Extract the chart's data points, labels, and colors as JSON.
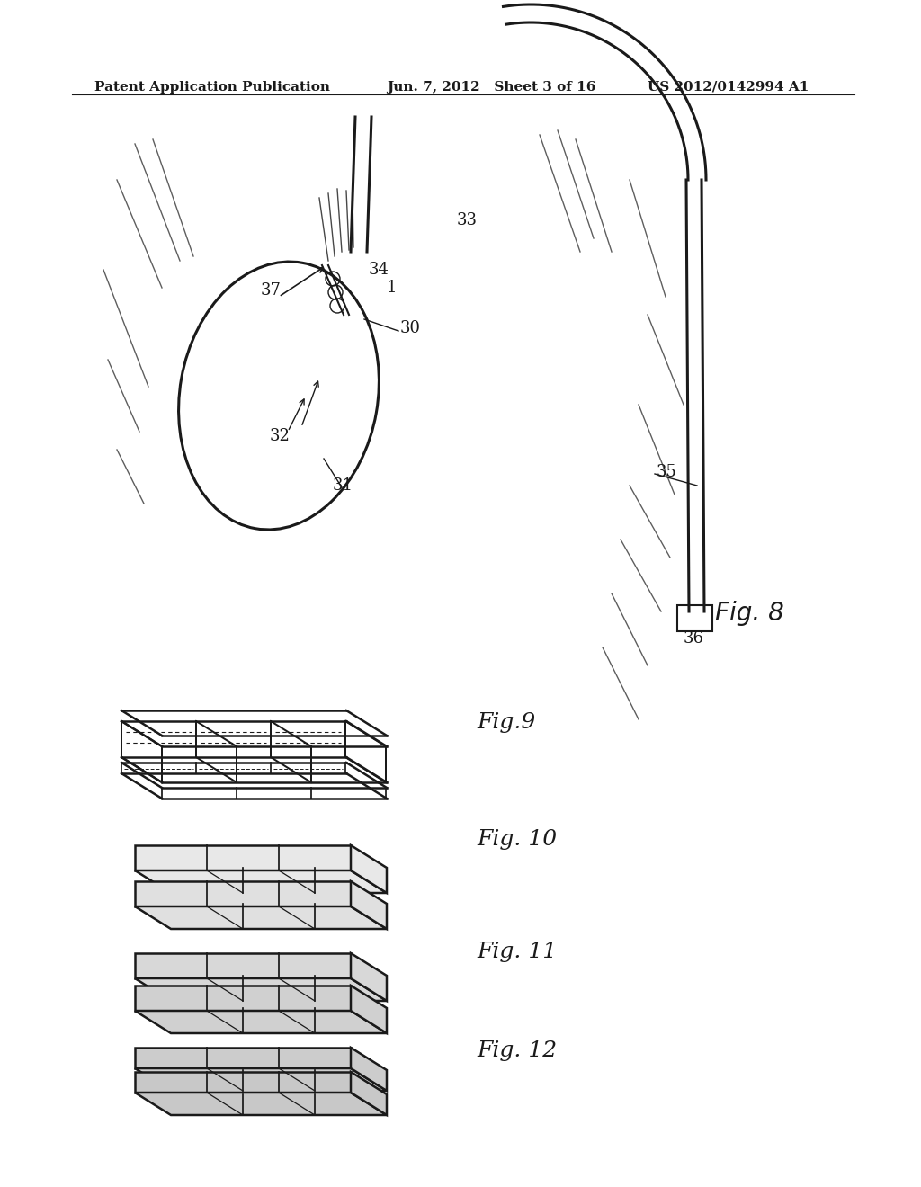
{
  "bg_color": "#ffffff",
  "header_left": "Patent Application Publication",
  "header_center": "Jun. 7, 2012   Sheet 3 of 16",
  "header_right": "US 2012/0142994 A1",
  "fig8_label": "Fig. 8",
  "fig9_label": "Fig.9",
  "fig10_label": "Fig. 10",
  "fig11_label": "Fig. 11",
  "fig12_label": "Fig. 12",
  "labels": [
    "37",
    "34",
    "1",
    "30",
    "32",
    "31",
    "33",
    "35",
    "36"
  ],
  "ink_color": "#1a1a1a"
}
